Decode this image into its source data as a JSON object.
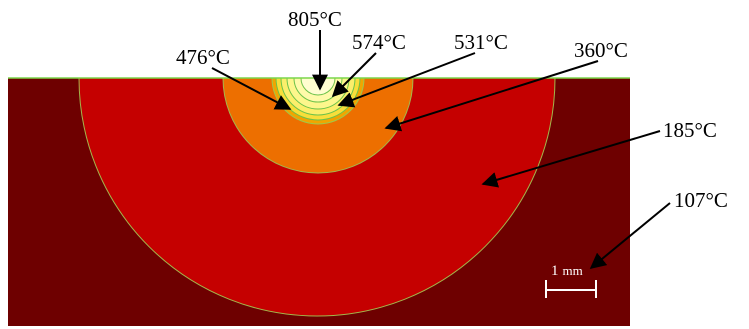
{
  "diagram": {
    "labels": {
      "t805": "805°C",
      "t574": "574°C",
      "t531": "531°C",
      "t476": "476°C",
      "t360": "360°C",
      "t185": "185°C",
      "t107": "107°C"
    },
    "scale_bar": {
      "number": "1",
      "unit": "mm"
    }
  }
}
